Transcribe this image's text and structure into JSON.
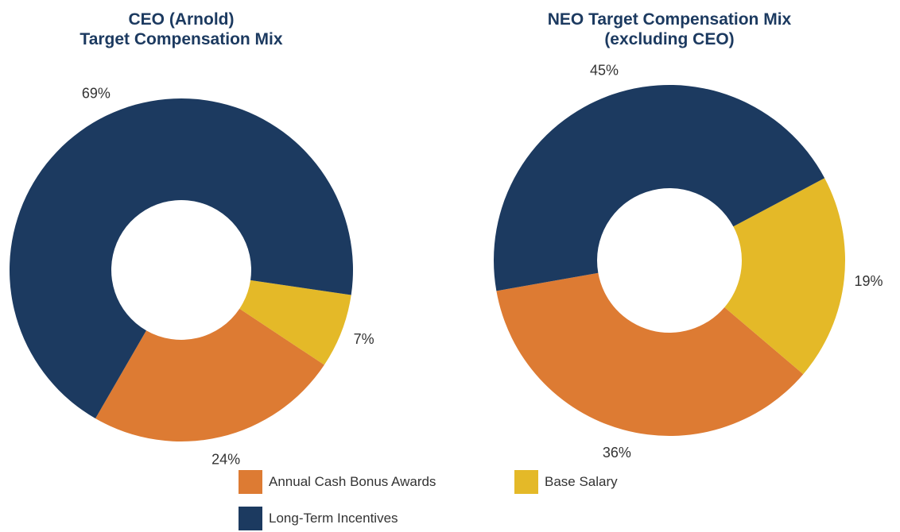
{
  "chart_data": [
    {
      "type": "donut",
      "title": "CEO (Arnold)\nTarget Compensation Mix",
      "categories": [
        "Annual Cash Bonus Awards",
        "Base Salary",
        "Long-Term Incentives"
      ],
      "values": [
        24,
        7,
        69
      ],
      "value_labels": [
        "24%",
        "7%",
        "69%"
      ],
      "colors": [
        "#dd7b33",
        "#e4b928",
        "#1c3a60"
      ]
    },
    {
      "type": "donut",
      "title": "NEO Target Compensation Mix\n(excluding CEO)",
      "categories": [
        "Annual Cash Bonus Awards",
        "Base Salary",
        "Long-Term Incentives"
      ],
      "values": [
        36,
        19,
        45
      ],
      "value_labels": [
        "36%",
        "19%",
        "45%"
      ],
      "colors": [
        "#dd7b33",
        "#e4b928",
        "#1c3a60"
      ]
    }
  ]
}
